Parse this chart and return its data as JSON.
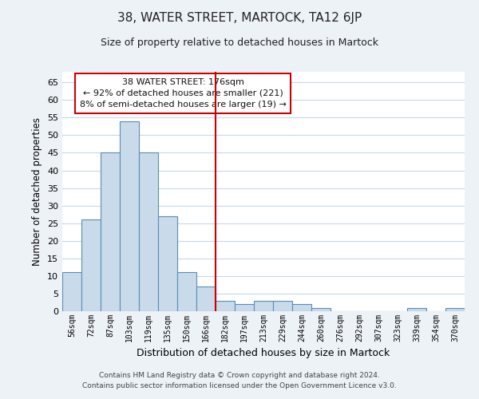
{
  "title": "38, WATER STREET, MARTOCK, TA12 6JP",
  "subtitle": "Size of property relative to detached houses in Martock",
  "xlabel": "Distribution of detached houses by size in Martock",
  "ylabel": "Number of detached properties",
  "bar_labels": [
    "56sqm",
    "72sqm",
    "87sqm",
    "103sqm",
    "119sqm",
    "135sqm",
    "150sqm",
    "166sqm",
    "182sqm",
    "197sqm",
    "213sqm",
    "229sqm",
    "244sqm",
    "260sqm",
    "276sqm",
    "292sqm",
    "307sqm",
    "323sqm",
    "339sqm",
    "354sqm",
    "370sqm"
  ],
  "bar_values": [
    11,
    26,
    45,
    54,
    45,
    27,
    11,
    7,
    3,
    2,
    3,
    3,
    2,
    1,
    0,
    0,
    0,
    0,
    1,
    0,
    1
  ],
  "bar_color": "#c9daea",
  "bar_edge_color": "#5a8db5",
  "reference_line_color": "#cc0000",
  "ylim": [
    0,
    68
  ],
  "yticks": [
    0,
    5,
    10,
    15,
    20,
    25,
    30,
    35,
    40,
    45,
    50,
    55,
    60,
    65
  ],
  "annotation_title": "38 WATER STREET: 176sqm",
  "annotation_line1": "← 92% of detached houses are smaller (221)",
  "annotation_line2": "8% of semi-detached houses are larger (19) →",
  "annotation_box_color": "#ffffff",
  "annotation_box_edge_color": "#cc0000",
  "footer_line1": "Contains HM Land Registry data © Crown copyright and database right 2024.",
  "footer_line2": "Contains public sector information licensed under the Open Government Licence v3.0.",
  "bg_color": "#edf2f7",
  "plot_bg_color": "#ffffff",
  "grid_color": "#c8d8e8",
  "title_fontsize": 11,
  "subtitle_fontsize": 9
}
